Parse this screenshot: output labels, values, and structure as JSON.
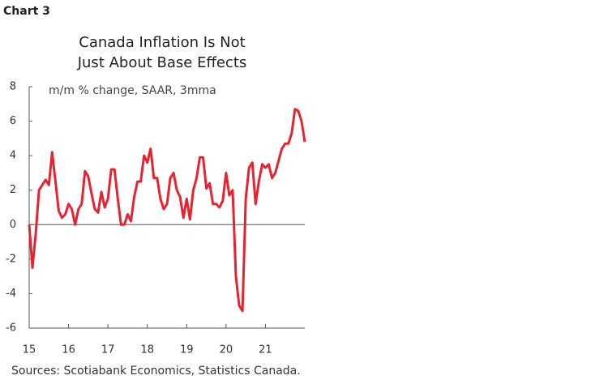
{
  "chart_label": "Chart 3",
  "chart_data": {
    "type": "line",
    "title": [
      "Canada Inflation Is Not",
      "Just About Base Effects"
    ],
    "subtitle": "m/m % change, SAAR, 3mma",
    "source": "Sources: Scotiabank Economics, Statistics Canada.",
    "color": "#e8222e",
    "xlim": [
      15,
      22
    ],
    "xticks": [
      15,
      16,
      17,
      18,
      19,
      20,
      21
    ],
    "ylim": [
      -6,
      8
    ],
    "yticks": [
      -6,
      -4,
      -2,
      0,
      2,
      4,
      6,
      8
    ],
    "grid": false,
    "x": [
      15,
      15.083,
      15.167,
      15.25,
      15.333,
      15.417,
      15.5,
      15.583,
      15.667,
      15.75,
      15.833,
      15.917,
      16,
      16.083,
      16.167,
      16.25,
      16.333,
      16.417,
      16.5,
      16.583,
      16.667,
      16.75,
      16.833,
      16.917,
      17,
      17.083,
      17.167,
      17.25,
      17.333,
      17.417,
      17.5,
      17.583,
      17.667,
      17.75,
      17.833,
      17.917,
      18,
      18.083,
      18.167,
      18.25,
      18.333,
      18.417,
      18.5,
      18.583,
      18.667,
      18.75,
      18.833,
      18.917,
      19,
      19.083,
      19.167,
      19.25,
      19.333,
      19.417,
      19.5,
      19.583,
      19.667,
      19.75,
      19.833,
      19.917,
      20,
      20.083,
      20.167,
      20.25,
      20.333,
      20.417,
      20.5,
      20.583,
      20.667,
      20.75,
      20.833,
      20.917,
      21,
      21.083,
      21.167,
      21.25,
      21.333,
      21.417,
      21.5,
      21.583,
      21.667,
      21.75,
      21.833,
      21.917,
      22
    ],
    "values": [
      0,
      -2.5,
      -0.5,
      2.0,
      2.3,
      2.6,
      2.3,
      4.2,
      2.5,
      0.8,
      0.4,
      0.6,
      1.2,
      0.9,
      0,
      0.9,
      1.2,
      3.1,
      2.8,
      1.8,
      0.9,
      0.7,
      1.9,
      1.0,
      1.5,
      3.2,
      3.2,
      1.5,
      0,
      0,
      0.6,
      0.2,
      1.6,
      2.5,
      2.5,
      4.0,
      3.6,
      4.4,
      2.7,
      2.7,
      1.5,
      0.9,
      1.2,
      2.7,
      3.0,
      2.0,
      1.6,
      0.4,
      1.5,
      0.3,
      2.0,
      2.7,
      3.9,
      3.9,
      2.1,
      2.4,
      1.2,
      1.2,
      1.0,
      1.4,
      3.0,
      1.7,
      2.0,
      -3.0,
      -4.7,
      -5.0,
      1.5,
      3.3,
      3.6,
      1.2,
      2.5,
      3.5,
      3.3,
      3.5,
      2.7,
      3.0,
      3.7,
      4.4,
      4.7,
      4.7,
      5.3,
      6.7,
      6.6,
      6.0,
      4.8
    ]
  }
}
